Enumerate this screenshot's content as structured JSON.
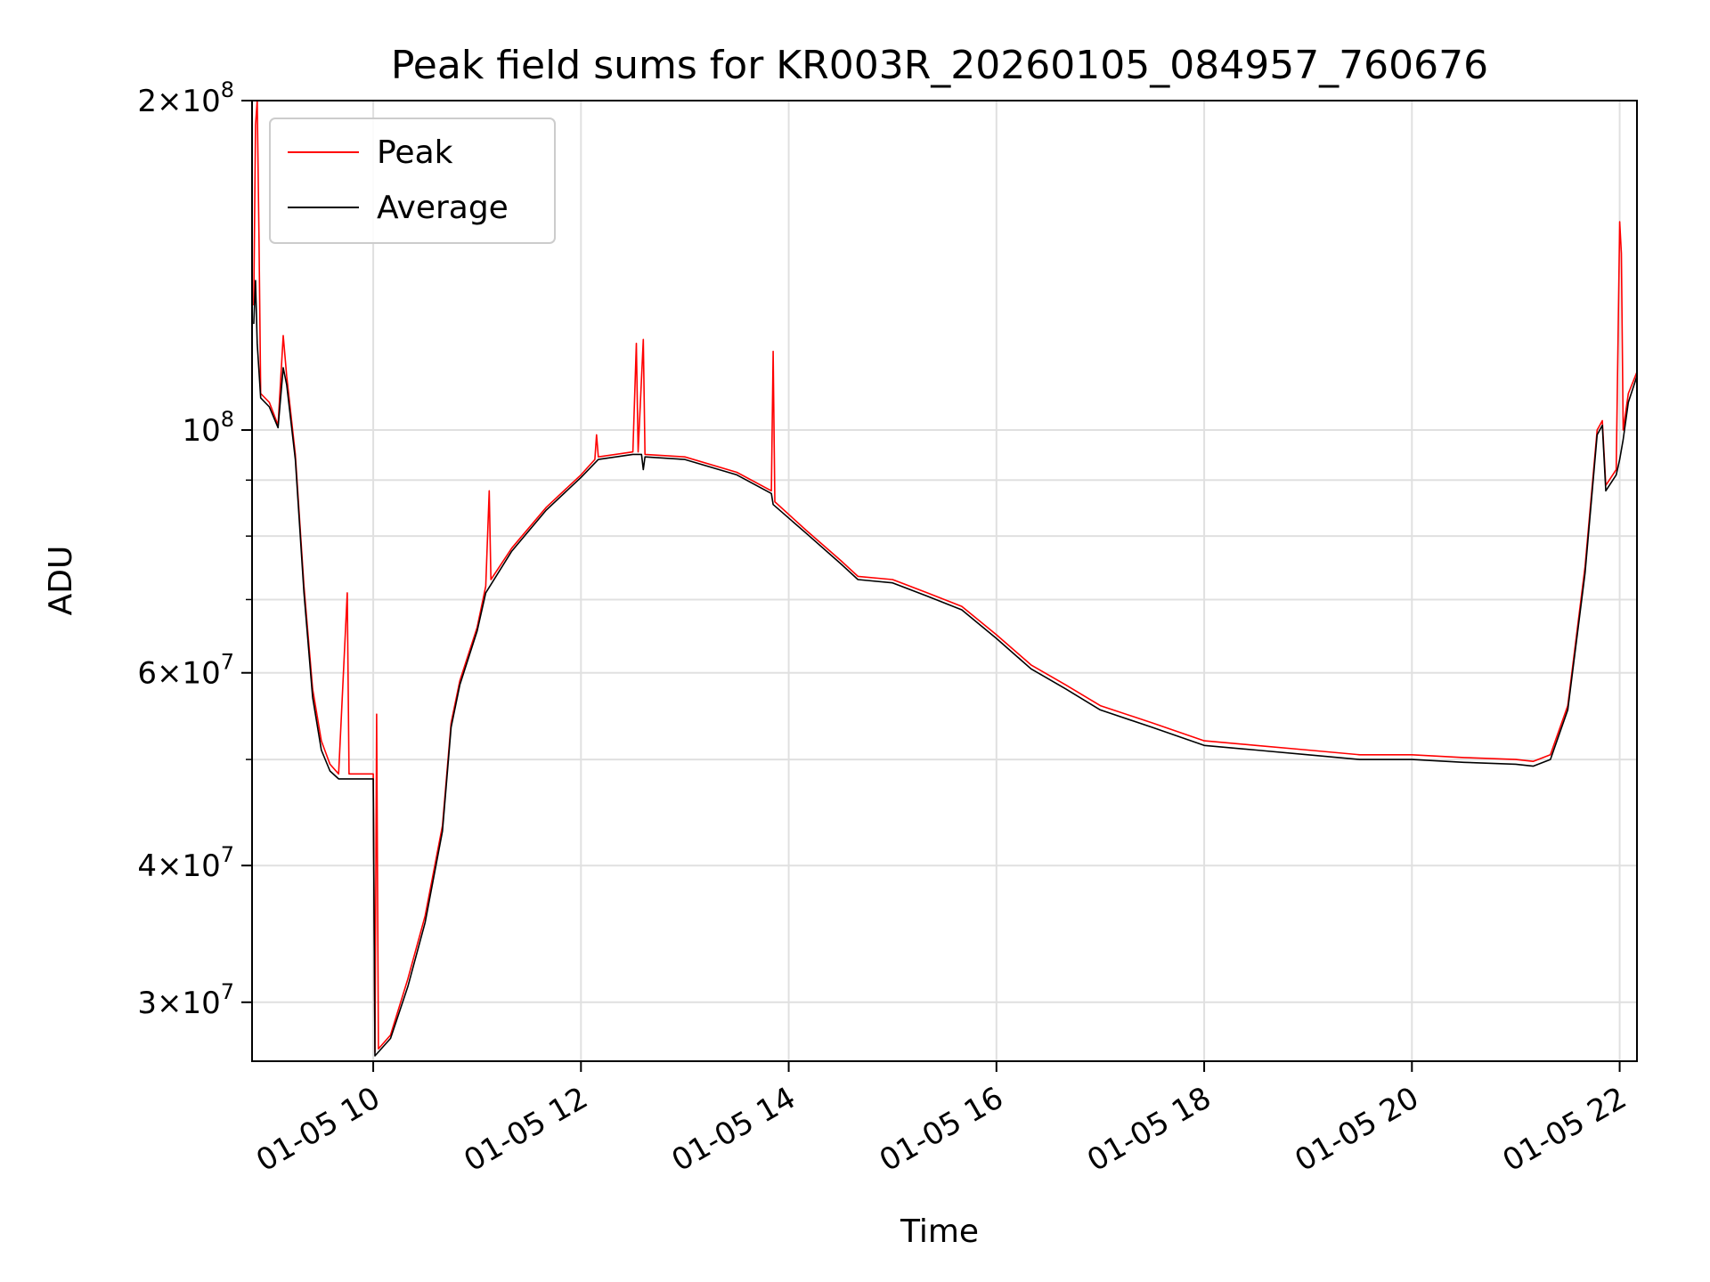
{
  "chart_data": {
    "type": "line",
    "title": "Peak field sums for KR003R_20260105_084957_760676",
    "xlabel": "Time",
    "ylabel": "ADU",
    "y_scale": "log",
    "ylim": [
      26500000,
      200000000
    ],
    "xlim": [
      "2026-01-05 08:50",
      "2026-01-05 22:10"
    ],
    "grid": true,
    "legend_position": "top-left",
    "x_tick_labels": [
      "01-05 10",
      "01-05 12",
      "01-05 14",
      "01-05 16",
      "01-05 18",
      "01-05 20",
      "01-05 22"
    ],
    "x_tick_values": [
      "2026-01-05 10:00",
      "2026-01-05 12:00",
      "2026-01-05 14:00",
      "2026-01-05 16:00",
      "2026-01-05 18:00",
      "2026-01-05 20:00",
      "2026-01-05 22:00"
    ],
    "y_major_ticks": [
      {
        "value": 30000000,
        "mant": "3",
        "exp": "7"
      },
      {
        "value": 40000000,
        "mant": "4",
        "exp": "7"
      },
      {
        "value": 60000000,
        "mant": "6",
        "exp": "7"
      },
      {
        "value": 100000000,
        "mant": "",
        "exp": "8"
      },
      {
        "value": 200000000,
        "mant": "2",
        "exp": "8"
      }
    ],
    "y_minor_ticks": [
      50000000,
      70000000,
      80000000,
      90000000
    ],
    "series": [
      {
        "name": "Peak",
        "color": "#ff0000",
        "points": [
          [
            "2026-01-05 08:51",
            130000000
          ],
          [
            "2026-01-05 08:52",
            190000000
          ],
          [
            "2026-01-05 08:53",
            200000000
          ],
          [
            "2026-01-05 08:54",
            150000000
          ],
          [
            "2026-01-05 08:55",
            108000000
          ],
          [
            "2026-01-05 09:00",
            106000000
          ],
          [
            "2026-01-05 09:05",
            101000000
          ],
          [
            "2026-01-05 09:08",
            122000000
          ],
          [
            "2026-01-05 09:10",
            112000000
          ],
          [
            "2026-01-05 09:15",
            95000000
          ],
          [
            "2026-01-05 09:20",
            72000000
          ],
          [
            "2026-01-05 09:25",
            58000000
          ],
          [
            "2026-01-05 09:30",
            52000000
          ],
          [
            "2026-01-05 09:35",
            49500000
          ],
          [
            "2026-01-05 09:40",
            48500000
          ],
          [
            "2026-01-05 09:45",
            71000000
          ],
          [
            "2026-01-05 09:46",
            48500000
          ],
          [
            "2026-01-05 09:55",
            48500000
          ],
          [
            "2026-01-05 10:00",
            48500000
          ],
          [
            "2026-01-05 10:01",
            27000000
          ],
          [
            "2026-01-05 10:02",
            55000000
          ],
          [
            "2026-01-05 10:03",
            27200000
          ],
          [
            "2026-01-05 10:10",
            28000000
          ],
          [
            "2026-01-05 10:20",
            31500000
          ],
          [
            "2026-01-05 10:30",
            36000000
          ],
          [
            "2026-01-05 10:40",
            43500000
          ],
          [
            "2026-01-05 10:45",
            54000000
          ],
          [
            "2026-01-05 10:50",
            59000000
          ],
          [
            "2026-01-05 11:00",
            66000000
          ],
          [
            "2026-01-05 11:05",
            72000000
          ],
          [
            "2026-01-05 11:07",
            88000000
          ],
          [
            "2026-01-05 11:08",
            73000000
          ],
          [
            "2026-01-05 11:20",
            78000000
          ],
          [
            "2026-01-05 11:40",
            85000000
          ],
          [
            "2026-01-05 12:00",
            91000000
          ],
          [
            "2026-01-05 12:08",
            94000000
          ],
          [
            "2026-01-05 12:09",
            99000000
          ],
          [
            "2026-01-05 12:10",
            94500000
          ],
          [
            "2026-01-05 12:30",
            95500000
          ],
          [
            "2026-01-05 12:32",
            120000000
          ],
          [
            "2026-01-05 12:33",
            95500000
          ],
          [
            "2026-01-05 12:36",
            121000000
          ],
          [
            "2026-01-05 12:37",
            95000000
          ],
          [
            "2026-01-05 13:00",
            94500000
          ],
          [
            "2026-01-05 13:30",
            91500000
          ],
          [
            "2026-01-05 13:50",
            88000000
          ],
          [
            "2026-01-05 13:51",
            118000000
          ],
          [
            "2026-01-05 13:52",
            86000000
          ],
          [
            "2026-01-05 14:10",
            81000000
          ],
          [
            "2026-01-05 14:30",
            76000000
          ],
          [
            "2026-01-05 14:40",
            73500000
          ],
          [
            "2026-01-05 15:00",
            73000000
          ],
          [
            "2026-01-05 15:20",
            71000000
          ],
          [
            "2026-01-05 15:40",
            69000000
          ],
          [
            "2026-01-05 16:00",
            65000000
          ],
          [
            "2026-01-05 16:20",
            61000000
          ],
          [
            "2026-01-05 16:40",
            58500000
          ],
          [
            "2026-01-05 17:00",
            56000000
          ],
          [
            "2026-01-05 17:30",
            54000000
          ],
          [
            "2026-01-05 18:00",
            52000000
          ],
          [
            "2026-01-05 18:30",
            51500000
          ],
          [
            "2026-01-05 19:00",
            51000000
          ],
          [
            "2026-01-05 19:30",
            50500000
          ],
          [
            "2026-01-05 20:00",
            50500000
          ],
          [
            "2026-01-05 20:30",
            50200000
          ],
          [
            "2026-01-05 21:00",
            50000000
          ],
          [
            "2026-01-05 21:10",
            49800000
          ],
          [
            "2026-01-05 21:20",
            50500000
          ],
          [
            "2026-01-05 21:30",
            56000000
          ],
          [
            "2026-01-05 21:40",
            75000000
          ],
          [
            "2026-01-05 21:47",
            100000000
          ],
          [
            "2026-01-05 21:50",
            102000000
          ],
          [
            "2026-01-05 21:52",
            89000000
          ],
          [
            "2026-01-05 21:58",
            92000000
          ],
          [
            "2026-01-05 22:00",
            155000000
          ],
          [
            "2026-01-05 22:01",
            145000000
          ],
          [
            "2026-01-05 22:02",
            100000000
          ],
          [
            "2026-01-05 22:05",
            108000000
          ],
          [
            "2026-01-05 22:10",
            113000000
          ]
        ]
      },
      {
        "name": "Average",
        "color": "#000000",
        "points": [
          [
            "2026-01-05 08:51",
            125000000
          ],
          [
            "2026-01-05 08:52",
            137000000
          ],
          [
            "2026-01-05 08:53",
            120000000
          ],
          [
            "2026-01-05 08:55",
            107000000
          ],
          [
            "2026-01-05 09:00",
            105000000
          ],
          [
            "2026-01-05 09:05",
            100500000
          ],
          [
            "2026-01-05 09:08",
            114000000
          ],
          [
            "2026-01-05 09:10",
            110000000
          ],
          [
            "2026-01-05 09:15",
            94000000
          ],
          [
            "2026-01-05 09:20",
            71000000
          ],
          [
            "2026-01-05 09:25",
            57000000
          ],
          [
            "2026-01-05 09:30",
            51000000
          ],
          [
            "2026-01-05 09:35",
            48800000
          ],
          [
            "2026-01-05 09:40",
            48000000
          ],
          [
            "2026-01-05 10:00",
            48000000
          ],
          [
            "2026-01-05 10:01",
            26800000
          ],
          [
            "2026-01-05 10:10",
            27800000
          ],
          [
            "2026-01-05 10:20",
            31000000
          ],
          [
            "2026-01-05 10:30",
            35500000
          ],
          [
            "2026-01-05 10:40",
            43000000
          ],
          [
            "2026-01-05 10:45",
            53500000
          ],
          [
            "2026-01-05 10:50",
            58500000
          ],
          [
            "2026-01-05 11:00",
            65500000
          ],
          [
            "2026-01-05 11:05",
            71000000
          ],
          [
            "2026-01-05 11:20",
            77500000
          ],
          [
            "2026-01-05 11:40",
            84500000
          ],
          [
            "2026-01-05 12:00",
            90500000
          ],
          [
            "2026-01-05 12:10",
            94000000
          ],
          [
            "2026-01-05 12:30",
            95000000
          ],
          [
            "2026-01-05 12:35",
            95000000
          ],
          [
            "2026-01-05 12:36",
            92000000
          ],
          [
            "2026-01-05 12:37",
            94500000
          ],
          [
            "2026-01-05 13:00",
            94000000
          ],
          [
            "2026-01-05 13:30",
            91000000
          ],
          [
            "2026-01-05 13:50",
            87500000
          ],
          [
            "2026-01-05 13:51",
            85500000
          ],
          [
            "2026-01-05 14:10",
            80500000
          ],
          [
            "2026-01-05 14:30",
            75500000
          ],
          [
            "2026-01-05 14:40",
            73000000
          ],
          [
            "2026-01-05 15:00",
            72500000
          ],
          [
            "2026-01-05 15:20",
            70500000
          ],
          [
            "2026-01-05 15:40",
            68500000
          ],
          [
            "2026-01-05 16:00",
            64500000
          ],
          [
            "2026-01-05 16:20",
            60500000
          ],
          [
            "2026-01-05 16:40",
            58000000
          ],
          [
            "2026-01-05 17:00",
            55500000
          ],
          [
            "2026-01-05 17:30",
            53500000
          ],
          [
            "2026-01-05 18:00",
            51500000
          ],
          [
            "2026-01-05 18:30",
            51000000
          ],
          [
            "2026-01-05 19:00",
            50500000
          ],
          [
            "2026-01-05 19:30",
            50000000
          ],
          [
            "2026-01-05 20:00",
            50000000
          ],
          [
            "2026-01-05 20:30",
            49700000
          ],
          [
            "2026-01-05 21:00",
            49500000
          ],
          [
            "2026-01-05 21:10",
            49300000
          ],
          [
            "2026-01-05 21:20",
            50000000
          ],
          [
            "2026-01-05 21:30",
            55500000
          ],
          [
            "2026-01-05 21:40",
            74000000
          ],
          [
            "2026-01-05 21:47",
            99000000
          ],
          [
            "2026-01-05 21:50",
            101000000
          ],
          [
            "2026-01-05 21:52",
            88000000
          ],
          [
            "2026-01-05 21:58",
            91000000
          ],
          [
            "2026-01-05 22:00",
            94000000
          ],
          [
            "2026-01-05 22:02",
            98000000
          ],
          [
            "2026-01-05 22:05",
            106000000
          ],
          [
            "2026-01-05 22:10",
            112000000
          ]
        ]
      }
    ]
  }
}
